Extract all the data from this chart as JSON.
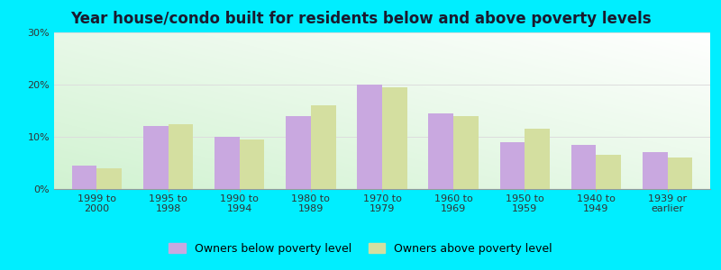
{
  "title": "Year house/condo built for residents below and above poverty levels",
  "categories": [
    "1999 to\n2000",
    "1995 to\n1998",
    "1990 to\n1994",
    "1980 to\n1989",
    "1970 to\n1979",
    "1960 to\n1969",
    "1950 to\n1959",
    "1940 to\n1949",
    "1939 or\nearlier"
  ],
  "below_poverty": [
    4.5,
    12.0,
    10.0,
    14.0,
    20.0,
    14.5,
    9.0,
    8.5,
    7.0
  ],
  "above_poverty": [
    4.0,
    12.5,
    9.5,
    16.0,
    19.5,
    14.0,
    11.5,
    6.5,
    6.0
  ],
  "below_color": "#c9a8e0",
  "above_color": "#d4dfa0",
  "ylim": [
    0,
    30
  ],
  "yticks": [
    0,
    10,
    20,
    30
  ],
  "ytick_labels": [
    "0%",
    "10%",
    "20%",
    "30%"
  ],
  "bar_width": 0.35,
  "outer_background": "#00eeff",
  "grid_color": "#dddddd",
  "legend_below_label": "Owners below poverty level",
  "legend_above_label": "Owners above poverty level",
  "title_fontsize": 12,
  "tick_fontsize": 8,
  "legend_fontsize": 9
}
